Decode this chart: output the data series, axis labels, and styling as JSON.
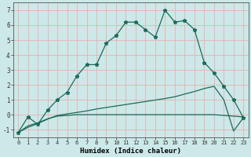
{
  "xlabel": "Humidex (Indice chaleur)",
  "x": [
    0,
    1,
    2,
    3,
    4,
    5,
    6,
    7,
    8,
    9,
    10,
    11,
    12,
    13,
    14,
    15,
    16,
    17,
    18,
    19,
    20,
    21,
    22,
    23
  ],
  "main_curve": [
    -1.2,
    -0.15,
    -0.65,
    0.3,
    1.0,
    1.5,
    2.6,
    3.35,
    3.35,
    4.8,
    5.3,
    6.2,
    6.2,
    5.7,
    5.2,
    7.0,
    6.2,
    6.3,
    5.7,
    3.5,
    2.8,
    1.9,
    1.0,
    -0.2
  ],
  "flat_line": [
    -1.2,
    -0.75,
    -0.55,
    -0.28,
    -0.1,
    -0.05,
    0.0,
    0.0,
    0.0,
    0.0,
    0.0,
    0.0,
    0.0,
    0.0,
    0.0,
    0.0,
    0.0,
    0.0,
    0.0,
    0.0,
    0.0,
    -0.05,
    -0.1,
    -0.15
  ],
  "diag_line": [
    -1.2,
    -0.85,
    -0.6,
    -0.3,
    -0.05,
    0.05,
    0.15,
    0.25,
    0.38,
    0.48,
    0.58,
    0.68,
    0.78,
    0.88,
    0.98,
    1.08,
    1.2,
    1.38,
    1.55,
    1.75,
    1.9,
    1.0,
    -1.1,
    -0.2
  ],
  "bg_color": "#cce8e8",
  "grid_color": "#e8b0b0",
  "line_color": "#1a6b5a",
  "ylim": [
    -1.5,
    7.5
  ],
  "xlim": [
    -0.5,
    23.5
  ],
  "yticks": [
    -1,
    0,
    1,
    2,
    3,
    4,
    5,
    6,
    7
  ],
  "xticks": [
    0,
    1,
    2,
    3,
    4,
    5,
    6,
    7,
    8,
    9,
    10,
    11,
    12,
    13,
    14,
    15,
    16,
    17,
    18,
    19,
    20,
    21,
    22,
    23
  ]
}
